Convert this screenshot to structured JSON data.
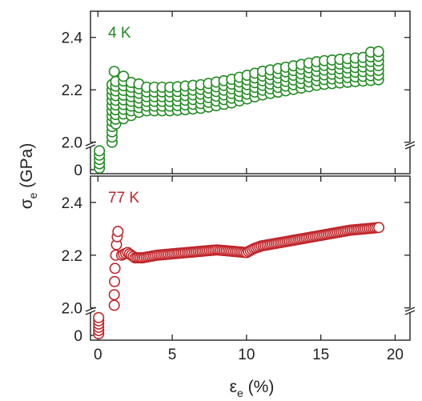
{
  "chart_data": [
    {
      "type": "scatter",
      "panel_label": "4 K",
      "color": "#1f8a1f",
      "xlim": [
        -0.5,
        21
      ],
      "y_upper_lim": [
        1.99,
        2.5
      ],
      "y_lower_lim": [
        0,
        0.2
      ],
      "y_ticks": [
        "2.0",
        "2.2",
        "2.4"
      ],
      "y_break_tick": "0",
      "x_ticks": [
        0,
        5,
        10,
        15,
        20
      ],
      "y_axis_break": [
        0.2,
        2.0
      ],
      "series": [
        {
          "oscillation_envelope": [
            {
              "x": 1.0,
              "y_low": 2.05,
              "y_high": 2.22
            },
            {
              "x": 1.3,
              "y_low": 2.08,
              "y_high": 2.26
            },
            {
              "x": 3.0,
              "y_low": 2.12,
              "y_high": 2.23
            },
            {
              "x": 5.0,
              "y_low": 2.12,
              "y_high": 2.21
            },
            {
              "x": 7.0,
              "y_low": 2.13,
              "y_high": 2.22
            },
            {
              "x": 9.0,
              "y_low": 2.15,
              "y_high": 2.24
            },
            {
              "x": 11.0,
              "y_low": 2.18,
              "y_high": 2.27
            },
            {
              "x": 13.0,
              "y_low": 2.2,
              "y_high": 2.29
            },
            {
              "x": 15.0,
              "y_low": 2.22,
              "y_high": 2.31
            },
            {
              "x": 17.0,
              "y_low": 2.23,
              "y_high": 2.33
            },
            {
              "x": 19.3,
              "y_low": 2.24,
              "y_high": 2.36
            }
          ],
          "initial_points": [
            {
              "x": 0.1,
              "y": 0.0
            },
            {
              "x": 0.1,
              "y": 0.04
            },
            {
              "x": 0.1,
              "y": 0.08
            },
            {
              "x": 0.1,
              "y": 0.12
            },
            {
              "x": 0.1,
              "y": 0.16
            }
          ]
        }
      ]
    },
    {
      "type": "scatter",
      "panel_label": "77 K",
      "color": "#c0262b",
      "xlim": [
        -0.5,
        21
      ],
      "y_upper_lim": [
        1.99,
        2.5
      ],
      "y_lower_lim": [
        0,
        0.2
      ],
      "y_ticks": [
        "2.0",
        "2.2",
        "2.4"
      ],
      "y_break_tick": "0",
      "x_ticks": [
        0,
        5,
        10,
        15,
        20
      ],
      "xlabel": "εe (%)",
      "y_axis_break": [
        0.2,
        2.0
      ],
      "series": [
        {
          "initial_points": [
            {
              "x": 0.05,
              "y": 0.0
            },
            {
              "x": 0.05,
              "y": 0.03
            },
            {
              "x": 0.05,
              "y": 0.06
            },
            {
              "x": 0.05,
              "y": 0.09
            },
            {
              "x": 0.05,
              "y": 0.12
            },
            {
              "x": 0.05,
              "y": 0.15
            }
          ],
          "loading_points": [
            {
              "x": 1.1,
              "y": 2.01
            },
            {
              "x": 1.1,
              "y": 2.05
            },
            {
              "x": 1.12,
              "y": 2.1
            },
            {
              "x": 1.15,
              "y": 2.15
            },
            {
              "x": 1.2,
              "y": 2.2
            },
            {
              "x": 1.25,
              "y": 2.24
            },
            {
              "x": 1.3,
              "y": 2.27
            },
            {
              "x": 1.35,
              "y": 2.29
            }
          ],
          "flow_curve": [
            {
              "x": 1.6,
              "y": 2.2
            },
            {
              "x": 2.0,
              "y": 2.21
            },
            {
              "x": 2.5,
              "y": 2.19
            },
            {
              "x": 3.0,
              "y": 2.19
            },
            {
              "x": 4.0,
              "y": 2.2
            },
            {
              "x": 5.0,
              "y": 2.205
            },
            {
              "x": 6.0,
              "y": 2.21
            },
            {
              "x": 7.0,
              "y": 2.215
            },
            {
              "x": 8.0,
              "y": 2.22
            },
            {
              "x": 9.0,
              "y": 2.215
            },
            {
              "x": 10.0,
              "y": 2.21
            },
            {
              "x": 10.5,
              "y": 2.225
            },
            {
              "x": 11.0,
              "y": 2.235
            },
            {
              "x": 12.0,
              "y": 2.245
            },
            {
              "x": 13.0,
              "y": 2.255
            },
            {
              "x": 14.0,
              "y": 2.265
            },
            {
              "x": 15.0,
              "y": 2.275
            },
            {
              "x": 16.0,
              "y": 2.285
            },
            {
              "x": 17.0,
              "y": 2.295
            },
            {
              "x": 18.0,
              "y": 2.3
            },
            {
              "x": 18.9,
              "y": 2.305
            }
          ]
        }
      ]
    }
  ],
  "shared_ylabel": "σe (GPa)"
}
